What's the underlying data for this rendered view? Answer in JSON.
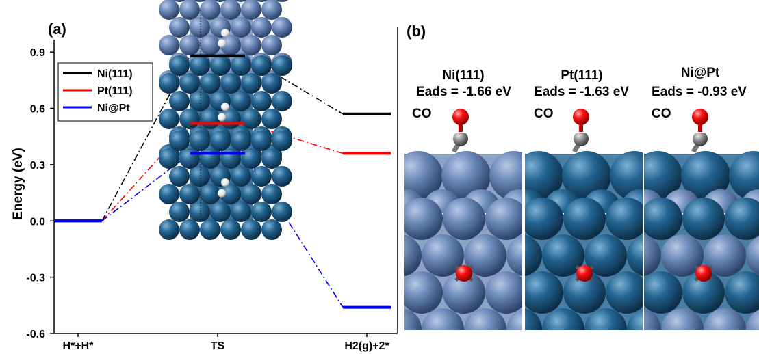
{
  "panel_a": {
    "label": "(a)"
  },
  "panel_b": {
    "label": "(b)"
  },
  "chart_data": {
    "type": "line",
    "ylabel": "Energy (eV)",
    "xlabel": "",
    "categories": [
      "H*+H*",
      "TS",
      "H2(g)+2*"
    ],
    "ylim": [
      -0.6,
      1.05
    ],
    "yticks": [
      -0.6,
      -0.3,
      0.0,
      0.3,
      0.6,
      0.9
    ],
    "ytick_labels": [
      "-0.6",
      "-0.3",
      "0.0",
      "0.3",
      "0.6",
      "0.9"
    ],
    "grid": false,
    "legend_position": "top-left",
    "series": [
      {
        "name": "Ni(111)",
        "color": "#000000",
        "values": [
          0.0,
          0.88,
          0.57
        ]
      },
      {
        "name": "Pt(111)",
        "color": "#ff0000",
        "values": [
          0.0,
          0.52,
          0.36
        ]
      },
      {
        "name": "Ni@Pt",
        "color": "#0000ff",
        "values": [
          0.0,
          0.36,
          -0.46
        ]
      }
    ]
  },
  "structures": [
    {
      "material": "Ni(111)",
      "eads": "Eads = -1.66 eV",
      "adsorbate": "CO",
      "slab_color": "#5f7eaa"
    },
    {
      "material": "Pt(111)",
      "eads": "Eads = -1.63 eV",
      "adsorbate": "CO",
      "slab_color": "#1f5b84"
    },
    {
      "material": "Ni@Pt",
      "eads": "Eads = -0.93 eV",
      "adsorbate": "CO",
      "slab_color": "#1f5b84"
    }
  ]
}
